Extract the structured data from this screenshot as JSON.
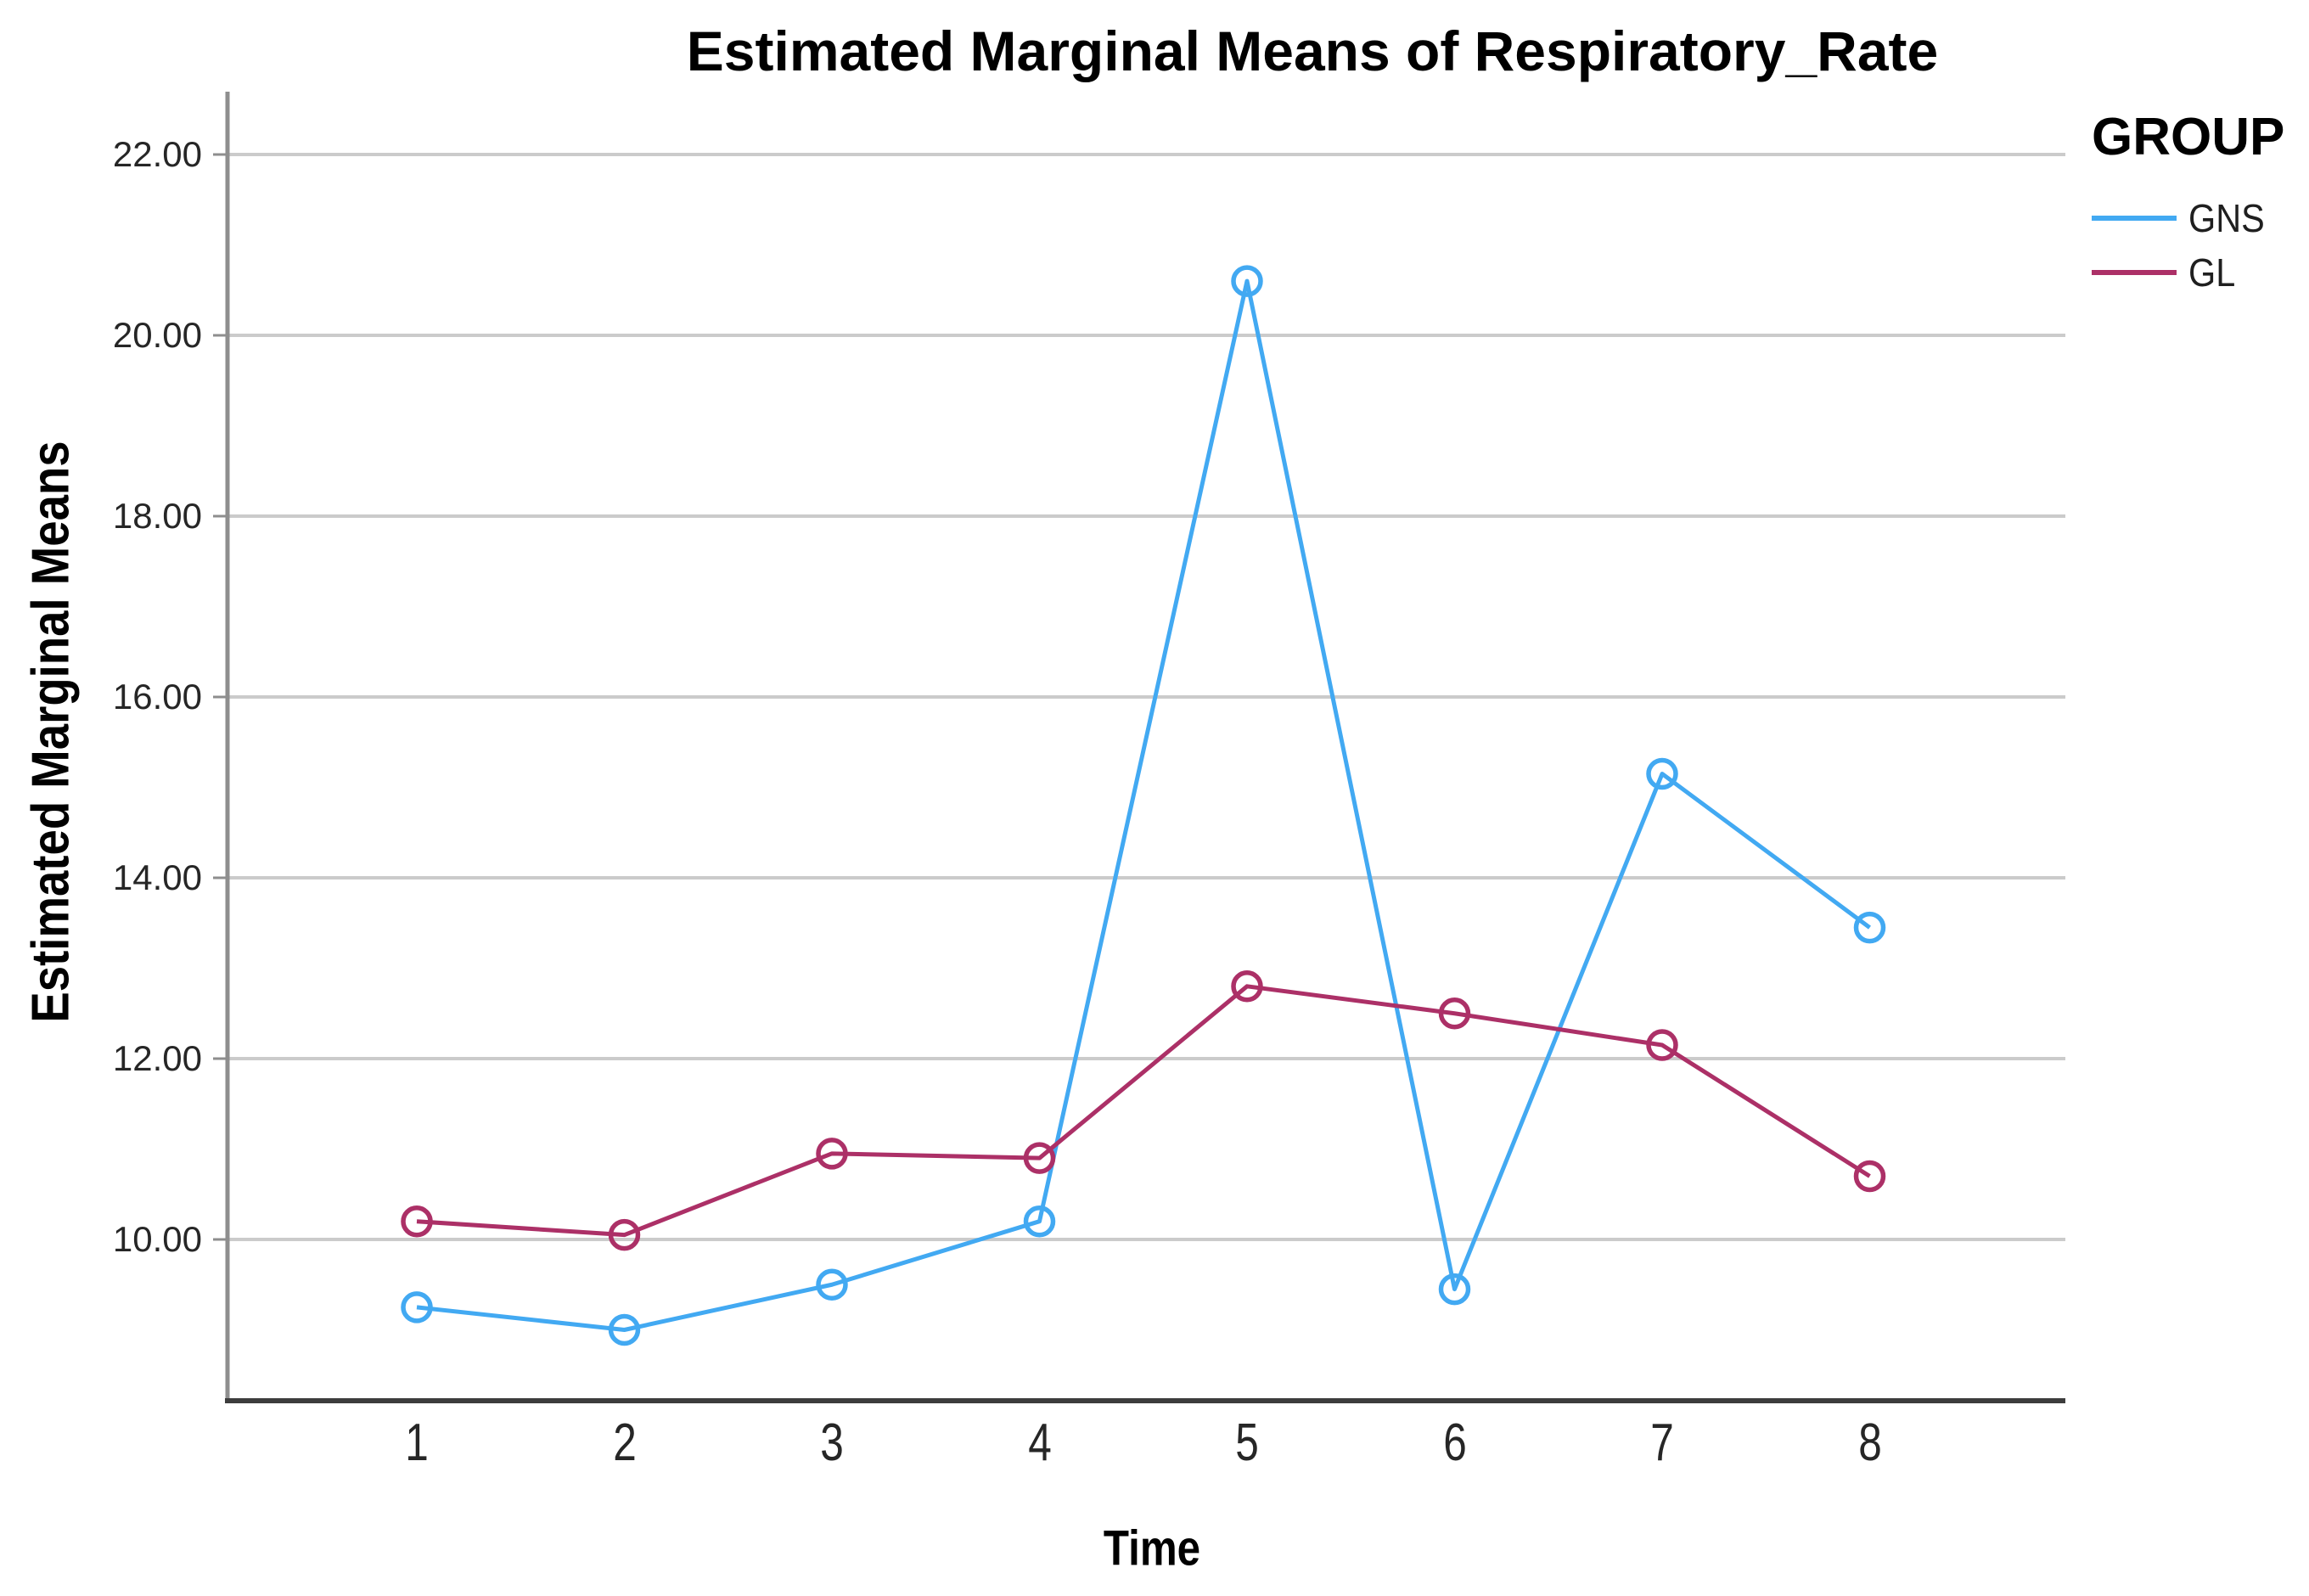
{
  "chart_data": {
    "type": "line",
    "title": "Estimated Marginal Means of Respiratory_Rate",
    "xlabel": "Time",
    "ylabel": "Estimated Marginal Means",
    "categories": [
      "1",
      "2",
      "3",
      "4",
      "5",
      "6",
      "7",
      "8"
    ],
    "yticks": [
      22,
      20,
      18,
      16,
      14,
      12,
      10
    ],
    "ytick_labels": [
      "22.00",
      "20.00",
      "18.00",
      "16.00",
      "14.00",
      "12.00",
      "10.00"
    ],
    "ylim": [
      8.2,
      22.7
    ],
    "grid": "horizontal-only",
    "legend": {
      "title": "GROUP",
      "position": "top-right"
    },
    "series": [
      {
        "name": "GNS",
        "color": "#42A9F2",
        "values": [
          9.25,
          9.0,
          9.5,
          10.2,
          20.6,
          9.45,
          15.15,
          13.45
        ]
      },
      {
        "name": "GL",
        "color": "#AC3067",
        "values": [
          10.2,
          10.05,
          10.95,
          10.9,
          12.8,
          12.5,
          12.15,
          10.7
        ]
      }
    ],
    "style": {
      "gridline_color": "#CBCBCB",
      "y_axis_color": "#8E8E8E",
      "x_axis_color": "#3D3D3D",
      "marker": "open-circle"
    }
  }
}
